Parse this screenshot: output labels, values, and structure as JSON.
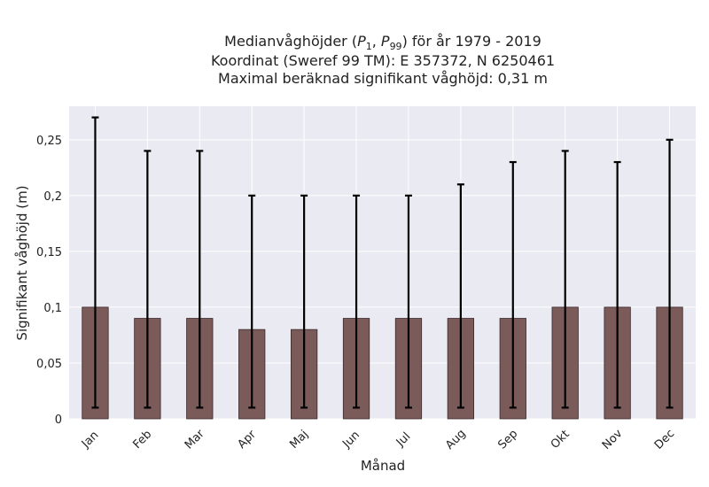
{
  "chart_data": {
    "type": "bar",
    "title_lines": [
      "Medianvåghöjder (P1, P99) för år 1979 - 2019",
      "Koordinat (Sweref 99 TM): E 357372, N 6250461",
      "Maximal beräknad signifikant våghöjd: 0,31 m"
    ],
    "xlabel": "Månad",
    "ylabel": "Signifikant våghöjd (m)",
    "categories": [
      "Jan",
      "Feb",
      "Mar",
      "Apr",
      "Maj",
      "Jun",
      "Jul",
      "Aug",
      "Sep",
      "Okt",
      "Nov",
      "Dec"
    ],
    "values": [
      0.1,
      0.09,
      0.09,
      0.08,
      0.08,
      0.09,
      0.09,
      0.09,
      0.09,
      0.1,
      0.1,
      0.1
    ],
    "error_low": [
      0.01,
      0.01,
      0.01,
      0.01,
      0.01,
      0.01,
      0.01,
      0.01,
      0.01,
      0.01,
      0.01,
      0.01
    ],
    "error_high": [
      0.27,
      0.24,
      0.24,
      0.2,
      0.2,
      0.2,
      0.2,
      0.21,
      0.23,
      0.24,
      0.23,
      0.25
    ],
    "ylim": [
      0,
      0.28
    ],
    "yticks": [
      0,
      0.05,
      0.1,
      0.15,
      0.2,
      0.25
    ],
    "ytick_labels": [
      "0",
      "0,05",
      "0,1",
      "0,15",
      "0,2",
      "0,25"
    ],
    "grid": true,
    "colors": {
      "bar": "#7b5a5a",
      "bar_edge": "#3a2a2a",
      "plot_bg": "#eaeaf2",
      "grid": "#ffffff",
      "error": "#000000"
    }
  }
}
